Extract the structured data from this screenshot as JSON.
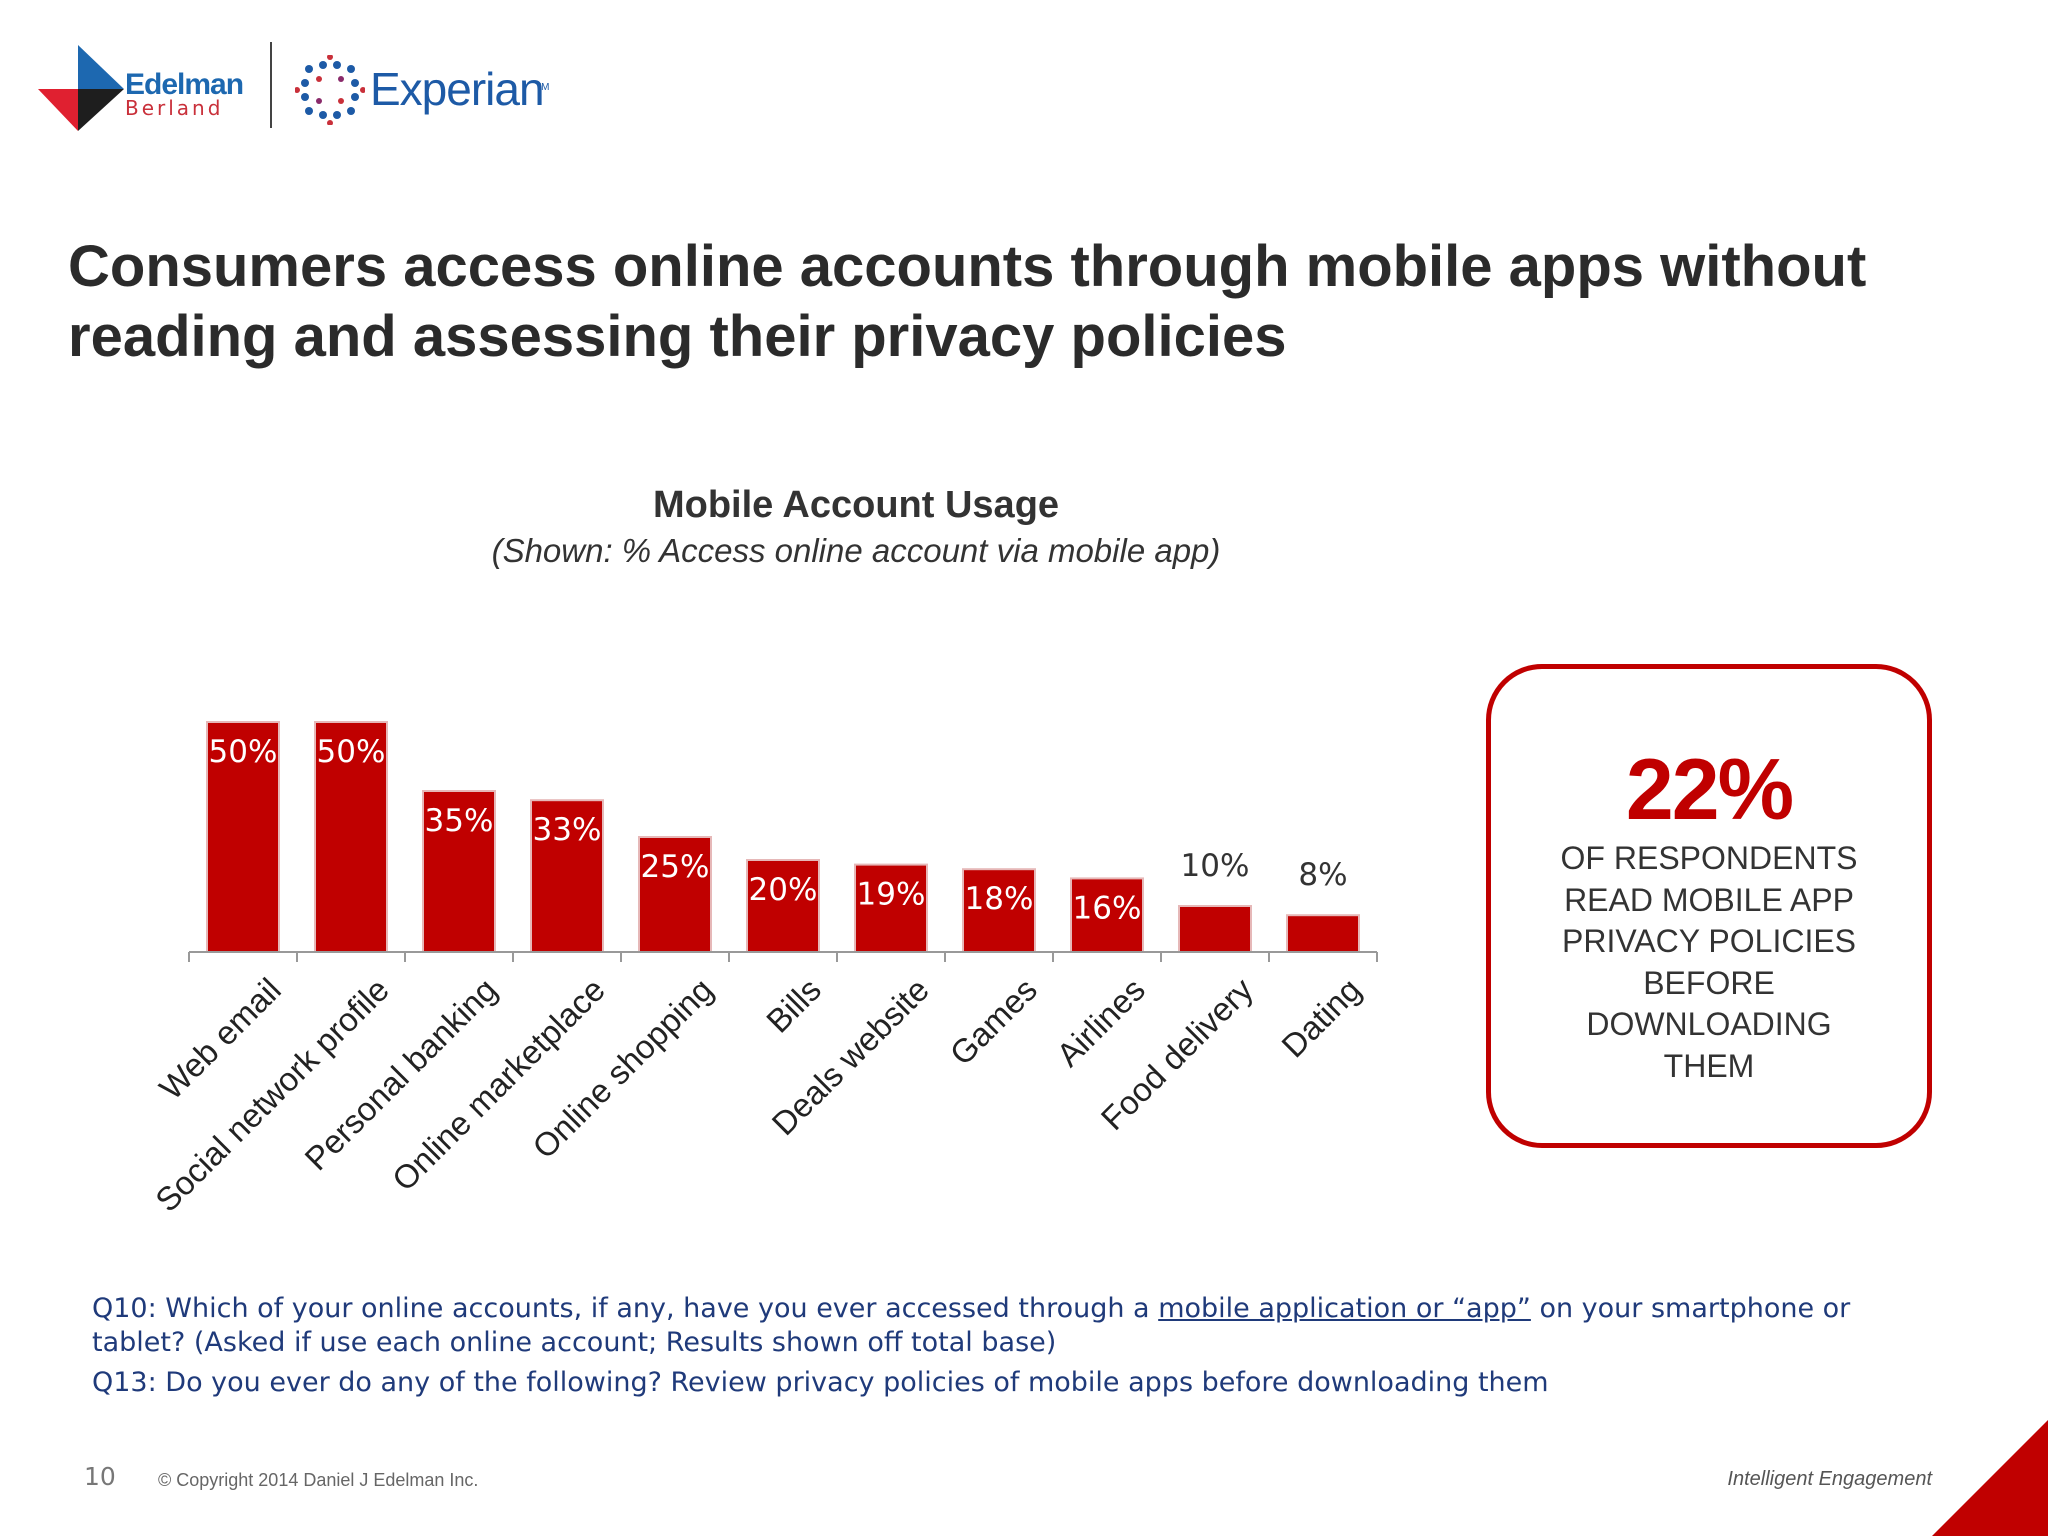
{
  "logos": {
    "edelman": "Edelman",
    "berland": "Berland",
    "experian": "Experian",
    "experian_tm": "TM"
  },
  "slide_title": "Consumers access online accounts through mobile apps without reading and assessing their privacy policies",
  "chart_data": {
    "type": "bar",
    "title": "Mobile Account Usage",
    "subtitle": "(Shown: % Access online account via mobile app)",
    "xlabel": "",
    "ylabel": "",
    "categories": [
      "Web email",
      "Social network profile",
      "Personal banking",
      "Online marketplace",
      "Online shopping",
      "Bills",
      "Deals website",
      "Games",
      "Airlines",
      "Food delivery",
      "Dating"
    ],
    "values": [
      50,
      50,
      35,
      33,
      25,
      20,
      19,
      18,
      16,
      10,
      8
    ],
    "value_labels": [
      "50%",
      "50%",
      "35%",
      "33%",
      "25%",
      "20%",
      "19%",
      "18%",
      "16%",
      "10%",
      "8%"
    ],
    "ylim": [
      0,
      50
    ],
    "grid": false,
    "bar_color": "#c00000"
  },
  "callout": {
    "percent": "22%",
    "text_lines": [
      "OF RESPONDENTS",
      "READ MOBILE APP",
      "PRIVACY POLICIES",
      "BEFORE",
      "DOWNLOADING",
      "THEM"
    ]
  },
  "notes": {
    "q10_before": "Q10: Which of your online accounts, if any, have you ever accessed through a ",
    "q10_link": "mobile application or “app”",
    "q10_after": " on your smartphone or tablet?  (Asked if use each online account; Results shown off total base)",
    "q13": "Q13: Do you ever do any of the following? Review privacy policies of mobile apps before downloading them"
  },
  "footer": {
    "page_number": "10",
    "copyright": "© Copyright 2014 Daniel J Edelman Inc.",
    "tagline": "Intelligent Engagement"
  },
  "colors": {
    "accent_red": "#c00000",
    "brand_blue": "#1d68b0",
    "note_blue": "#1f3a7a"
  }
}
